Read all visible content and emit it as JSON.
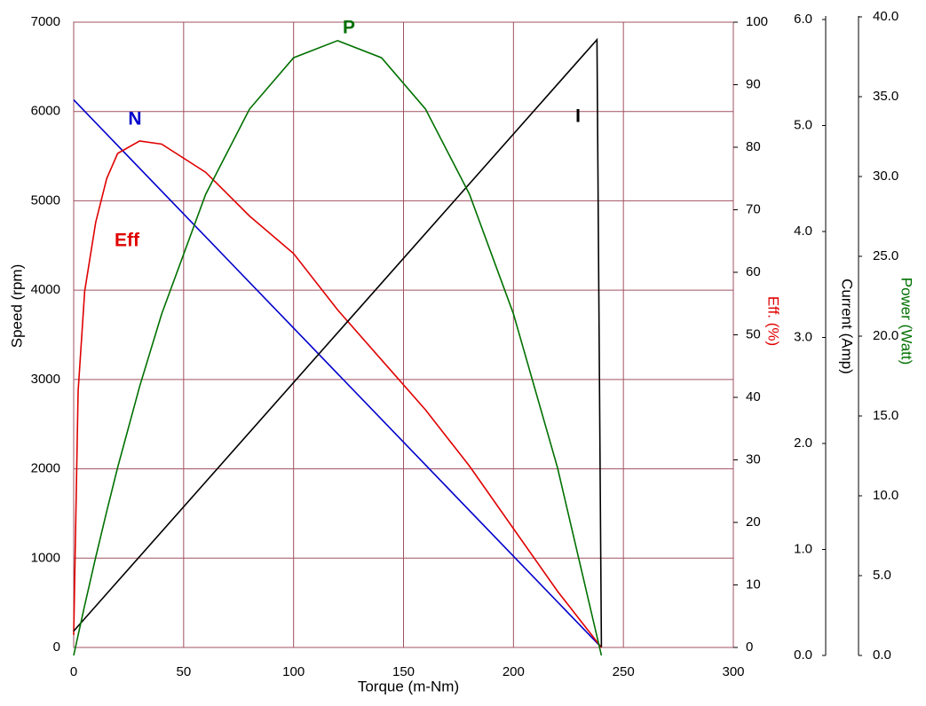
{
  "chart_data": {
    "type": "line",
    "xlabel": "Torque (m-Nm)",
    "ylabel": "Speed (rpm)",
    "y2label": "Eff. (%)",
    "y3label": "Current (Amp)",
    "y4label": "Power (Watt)",
    "xlim": [
      0,
      300
    ],
    "xticks": [
      0,
      50,
      100,
      150,
      200,
      250,
      300
    ],
    "ylim": [
      0,
      7000
    ],
    "yticks": [
      0,
      1000,
      2000,
      3000,
      4000,
      5000,
      6000,
      7000
    ],
    "y2lim": [
      0,
      100
    ],
    "y2ticks": [
      0,
      10,
      20,
      30,
      40,
      50,
      60,
      70,
      80,
      90,
      100
    ],
    "y3lim": [
      0,
      6
    ],
    "y3ticks": [
      {
        "value": 0,
        "label": "0.0"
      },
      {
        "value": 1,
        "label": "1.0"
      },
      {
        "value": 2,
        "label": "2.0"
      },
      {
        "value": 3,
        "label": "3.0"
      },
      {
        "value": 4,
        "label": "4.0"
      },
      {
        "value": 5,
        "label": "5.0"
      },
      {
        "value": 6,
        "label": "6.0"
      }
    ],
    "y4lim": [
      0,
      40
    ],
    "y4ticks": [
      {
        "value": 0,
        "label": "0.0"
      },
      {
        "value": 5,
        "label": "5.0"
      },
      {
        "value": 10,
        "label": "10.0"
      },
      {
        "value": 15,
        "label": "15.0"
      },
      {
        "value": 20,
        "label": "20.0"
      },
      {
        "value": 25,
        "label": "25.0"
      },
      {
        "value": 30,
        "label": "30.0"
      },
      {
        "value": 35,
        "label": "35.0"
      },
      {
        "value": 40,
        "label": "40.0"
      }
    ],
    "grid": true,
    "series": [
      {
        "name": "N",
        "color": "#0000cc",
        "axis": "y",
        "x": [
          0,
          240
        ],
        "values": [
          6130,
          0
        ]
      },
      {
        "name": "Eff",
        "color": "#e00000",
        "axis": "y2",
        "x": [
          0,
          2,
          5,
          10,
          15,
          20,
          30,
          40,
          60,
          80,
          100,
          120,
          140,
          160,
          180,
          200,
          220,
          240
        ],
        "values": [
          2,
          41,
          57,
          68,
          75,
          79,
          81,
          80.5,
          76,
          69,
          63,
          54,
          46,
          38,
          29,
          19,
          9,
          0
        ]
      },
      {
        "name": "I",
        "color": "#000000",
        "axis": "y3",
        "x": [
          0,
          238,
          240
        ],
        "values": [
          0.23,
          5.81,
          0.08
        ]
      },
      {
        "name": "P",
        "color": "#007000",
        "axis": "y4",
        "x": [
          0,
          2,
          5,
          10,
          15,
          20,
          30,
          40,
          60,
          80,
          100,
          120,
          140,
          160,
          180,
          200,
          220,
          240
        ],
        "values": [
          0,
          1.27,
          3.14,
          6.15,
          9.03,
          11.77,
          16.85,
          21.39,
          28.88,
          34.23,
          37.44,
          38.51,
          37.44,
          34.22,
          28.89,
          21.4,
          11.77,
          0
        ]
      }
    ]
  }
}
